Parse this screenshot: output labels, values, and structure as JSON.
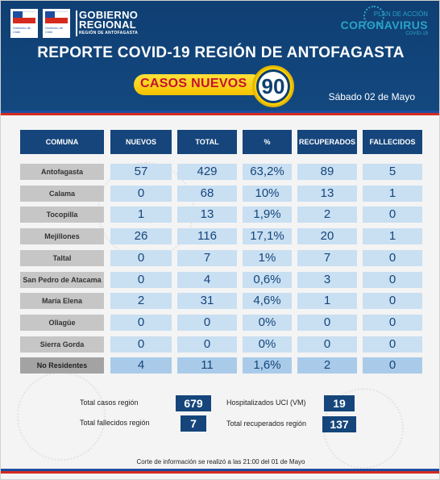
{
  "header": {
    "gov_logo_1_text": "Gobierno de Chile",
    "gov_logo_2_text": "Gobierno de Chile",
    "org_title_line1": "GOBIERNO",
    "org_title_line2": "REGIONAL",
    "org_subtitle": "REGIÓN DE ANTOFAGASTA",
    "plan_label": "PLAN DE ACCIÓN",
    "campaign_title": "CORONAVIRUS",
    "campaign_sub": "COVID-19",
    "report_title": "REPORTE COVID-19 REGIÓN DE ANTOFAGASTA",
    "new_cases_label": "CASOS NUEVOS",
    "new_cases_value": "90",
    "date": "Sábado 02 de Mayo",
    "icon": "virus-icon",
    "flag_colors": {
      "blue": "#1c4ea0",
      "red": "#d52b1e"
    }
  },
  "table": {
    "headers": [
      "COMUNA",
      "NUEVOS",
      "TOTAL",
      "%",
      "RECUPERADOS",
      "FALLECIDOS"
    ],
    "rows": [
      {
        "comuna": "Antofagasta",
        "nuevos": "57",
        "total": "429",
        "pct": "63,2%",
        "recuperados": "89",
        "fallecidos": "5"
      },
      {
        "comuna": "Calama",
        "nuevos": "0",
        "total": "68",
        "pct": "10%",
        "recuperados": "13",
        "fallecidos": "1"
      },
      {
        "comuna": "Tocopilla",
        "nuevos": "1",
        "total": "13",
        "pct": "1,9%",
        "recuperados": "2",
        "fallecidos": "0"
      },
      {
        "comuna": "Mejillones",
        "nuevos": "26",
        "total": "116",
        "pct": "17,1%",
        "recuperados": "20",
        "fallecidos": "1"
      },
      {
        "comuna": "Taltal",
        "nuevos": "0",
        "total": "7",
        "pct": "1%",
        "recuperados": "7",
        "fallecidos": "0"
      },
      {
        "comuna": "San Pedro de Atacama",
        "nuevos": "0",
        "total": "4",
        "pct": "0,6%",
        "recuperados": "3",
        "fallecidos": "0"
      },
      {
        "comuna": "María Elena",
        "nuevos": "2",
        "total": "31",
        "pct": "4,6%",
        "recuperados": "1",
        "fallecidos": "0"
      },
      {
        "comuna": "Ollagüe",
        "nuevos": "0",
        "total": "0",
        "pct": "0%",
        "recuperados": "0",
        "fallecidos": "0"
      },
      {
        "comuna": "Sierra Gorda",
        "nuevos": "0",
        "total": "0",
        "pct": "0%",
        "recuperados": "0",
        "fallecidos": "0"
      },
      {
        "comuna": "No Residentes",
        "nuevos": "4",
        "total": "11",
        "pct": "1,6%",
        "recuperados": "2",
        "fallecidos": "0"
      }
    ]
  },
  "summary": {
    "total_cases_label": "Total casos región",
    "total_cases_value": "679",
    "total_deaths_label": "Total fallecidos región",
    "total_deaths_value": "7",
    "icu_label": "Hospitalizados UCI (VM)",
    "icu_value": "19",
    "recovered_label": "Total recuperados región",
    "recovered_value": "137"
  },
  "footer": {
    "note": "Corte de información se realizó a las 21:00 del 01 de Mayo"
  },
  "colors": {
    "header_bg": "#0f3f73",
    "table_header": "#15457b",
    "cell_bg": "#c9dff2",
    "name_bg": "#c6c6c6",
    "accent_yellow": "#ffd400",
    "accent_red": "#c4122f"
  }
}
